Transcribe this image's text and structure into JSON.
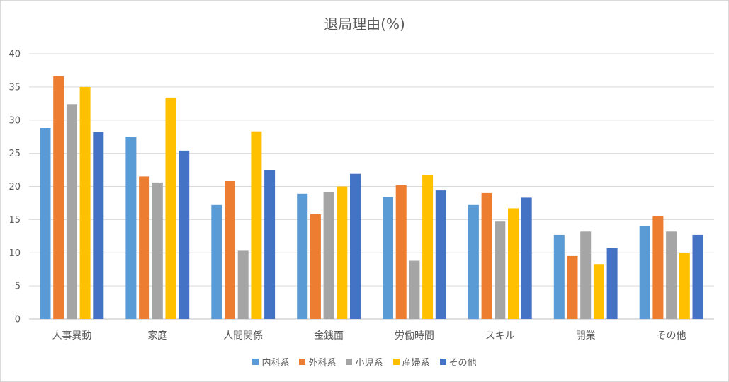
{
  "chart_data": {
    "type": "bar",
    "title": "退局理由(%)",
    "xlabel": "",
    "ylabel": "",
    "ylim": [
      0,
      40
    ],
    "yticks": [
      0,
      5,
      10,
      15,
      20,
      25,
      30,
      35,
      40
    ],
    "grid": true,
    "legend_position": "bottom",
    "categories": [
      "人事異動",
      "家庭",
      "人間関係",
      "金銭面",
      "労働時間",
      "スキル",
      "開業",
      "その他"
    ],
    "series": [
      {
        "name": "内科系",
        "color": "#5b9bd5",
        "values": [
          28.8,
          27.5,
          17.2,
          18.9,
          18.4,
          17.2,
          12.7,
          14.0
        ]
      },
      {
        "name": "外科系",
        "color": "#ed7d31",
        "values": [
          36.6,
          21.5,
          20.8,
          15.8,
          20.2,
          19.0,
          9.5,
          15.5
        ]
      },
      {
        "name": "小児系",
        "color": "#a5a5a5",
        "values": [
          32.4,
          20.6,
          10.3,
          19.1,
          8.8,
          14.7,
          13.2,
          13.2
        ]
      },
      {
        "name": "産婦系",
        "color": "#ffc000",
        "values": [
          35.0,
          33.4,
          28.3,
          20.0,
          21.7,
          16.7,
          8.3,
          10.0
        ]
      },
      {
        "name": "その他",
        "color": "#4472c4",
        "values": [
          28.2,
          25.4,
          22.5,
          21.9,
          19.4,
          18.3,
          10.7,
          12.7
        ]
      }
    ]
  }
}
